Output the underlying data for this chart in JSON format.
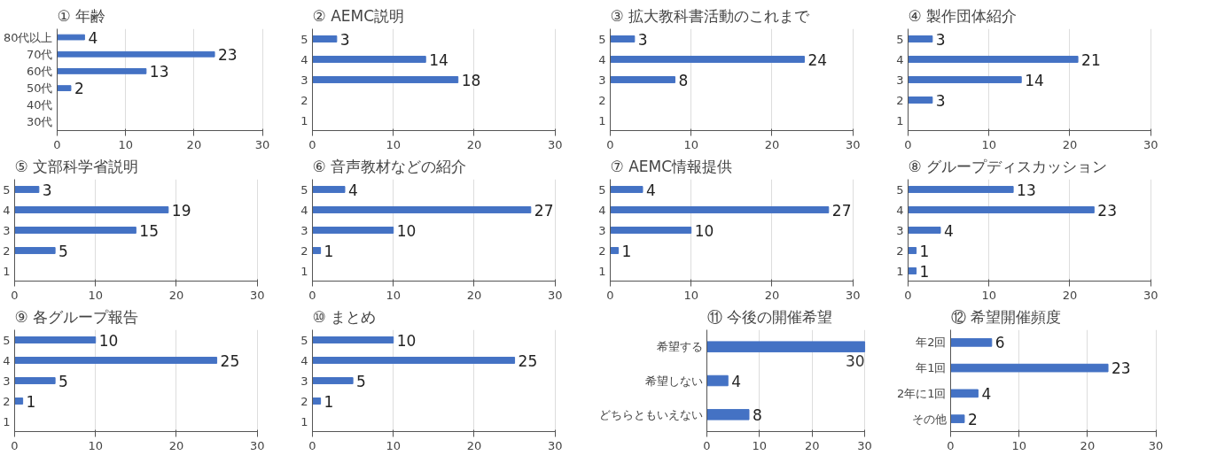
{
  "chart_data": [
    {
      "type": "bar",
      "orientation": "horizontal",
      "title": "① 年齢",
      "categories": [
        "80代以上",
        "70代",
        "60代",
        "50代",
        "40代",
        "30代"
      ],
      "values": [
        4,
        23,
        13,
        2,
        null,
        null
      ],
      "color": "#4472c4",
      "xlim": [
        0,
        30
      ],
      "xticks": [
        0,
        10,
        20,
        30
      ],
      "grid": "x",
      "data_labels": true
    },
    {
      "type": "bar",
      "orientation": "horizontal",
      "title": "② AEMC説明",
      "categories": [
        "5",
        "4",
        "3",
        "2",
        "1"
      ],
      "values": [
        3,
        14,
        18,
        null,
        null
      ],
      "color": "#4472c4",
      "xlim": [
        0,
        30
      ],
      "xticks": [
        0,
        10,
        20,
        30
      ],
      "grid": "x",
      "data_labels": true
    },
    {
      "type": "bar",
      "orientation": "horizontal",
      "title": "③ 拡大教科書活動のこれまで",
      "categories": [
        "5",
        "4",
        "3",
        "2",
        "1"
      ],
      "values": [
        3,
        24,
        8,
        null,
        null
      ],
      "color": "#4472c4",
      "xlim": [
        0,
        30
      ],
      "xticks": [
        0,
        10,
        20,
        30
      ],
      "grid": "x",
      "data_labels": true
    },
    {
      "type": "bar",
      "orientation": "horizontal",
      "title": "④ 製作団体紹介",
      "categories": [
        "5",
        "4",
        "3",
        "2",
        "1"
      ],
      "values": [
        3,
        21,
        14,
        3,
        null
      ],
      "color": "#4472c4",
      "xlim": [
        0,
        30
      ],
      "xticks": [
        0,
        10,
        20,
        30
      ],
      "grid": "x",
      "data_labels": true
    },
    {
      "type": "bar",
      "orientation": "horizontal",
      "title": "⑤ 文部科学省説明",
      "categories": [
        "5",
        "4",
        "3",
        "2",
        "1"
      ],
      "values": [
        3,
        19,
        15,
        5,
        null
      ],
      "color": "#4472c4",
      "xlim": [
        0,
        30
      ],
      "xticks": [
        0,
        10,
        20,
        30
      ],
      "grid": "x",
      "data_labels": true
    },
    {
      "type": "bar",
      "orientation": "horizontal",
      "title": "⑥ 音声教材などの紹介",
      "categories": [
        "5",
        "4",
        "3",
        "2",
        "1"
      ],
      "values": [
        4,
        27,
        10,
        1,
        null
      ],
      "color": "#4472c4",
      "xlim": [
        0,
        30
      ],
      "xticks": [
        0,
        10,
        20,
        30
      ],
      "grid": "x",
      "data_labels": true
    },
    {
      "type": "bar",
      "orientation": "horizontal",
      "title": "⑦ AEMC情報提供",
      "categories": [
        "5",
        "4",
        "3",
        "2",
        "1"
      ],
      "values": [
        4,
        27,
        10,
        1,
        null
      ],
      "color": "#4472c4",
      "xlim": [
        0,
        30
      ],
      "xticks": [
        0,
        10,
        20,
        30
      ],
      "grid": "x",
      "data_labels": true
    },
    {
      "type": "bar",
      "orientation": "horizontal",
      "title": "⑧ グループディスカッション",
      "categories": [
        "5",
        "4",
        "3",
        "2",
        "1"
      ],
      "values": [
        13,
        23,
        4,
        1,
        1
      ],
      "color": "#4472c4",
      "xlim": [
        0,
        30
      ],
      "xticks": [
        0,
        10,
        20,
        30
      ],
      "grid": "x",
      "data_labels": true
    },
    {
      "type": "bar",
      "orientation": "horizontal",
      "title": "⑨ 各グループ報告",
      "categories": [
        "5",
        "4",
        "3",
        "2",
        "1"
      ],
      "values": [
        10,
        25,
        5,
        1,
        null
      ],
      "color": "#4472c4",
      "xlim": [
        0,
        30
      ],
      "xticks": [
        0,
        10,
        20,
        30
      ],
      "grid": "x",
      "data_labels": true
    },
    {
      "type": "bar",
      "orientation": "horizontal",
      "title": "⑩ まとめ",
      "categories": [
        "5",
        "4",
        "3",
        "2",
        "1"
      ],
      "values": [
        10,
        25,
        5,
        1,
        null
      ],
      "color": "#4472c4",
      "xlim": [
        0,
        30
      ],
      "xticks": [
        0,
        10,
        20,
        30
      ],
      "grid": "x",
      "data_labels": true
    },
    {
      "type": "bar",
      "orientation": "horizontal",
      "title": "⑪ 今後の開催希望",
      "categories": [
        "希望する",
        "希望しない",
        "どちらともいえない"
      ],
      "values": [
        30,
        4,
        8
      ],
      "color": "#4472c4",
      "xlim": [
        0,
        30
      ],
      "xticks": [
        0,
        10,
        20,
        30
      ],
      "grid": "x",
      "data_labels": true
    },
    {
      "type": "bar",
      "orientation": "horizontal",
      "title": "⑫ 希望開催頻度",
      "categories": [
        "年2回",
        "年1回",
        "2年に1回",
        "その他"
      ],
      "values": [
        6,
        23,
        4,
        2
      ],
      "color": "#4472c4",
      "xlim": [
        0,
        30
      ],
      "xticks": [
        0,
        10,
        20,
        30
      ],
      "grid": "x",
      "data_labels": true
    }
  ]
}
